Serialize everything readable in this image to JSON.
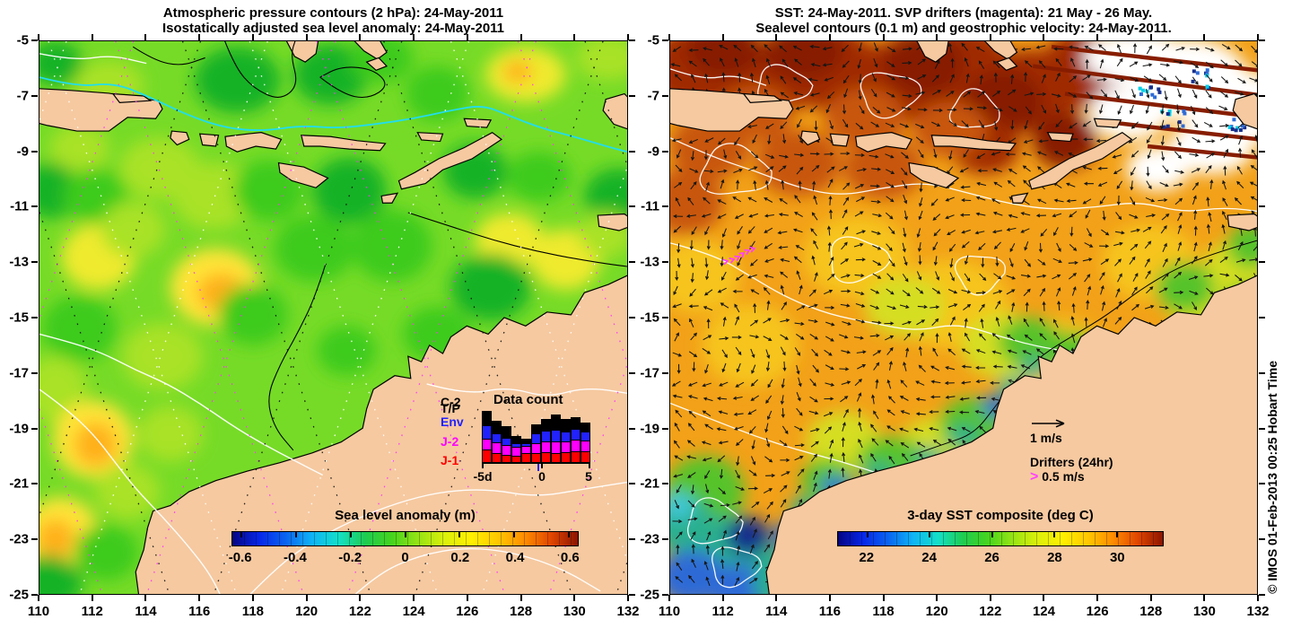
{
  "watermark": "© IMOS 01-Feb-2013 00:25 Hobart Time",
  "axes": {
    "x_tick_labels": [
      "110",
      "112",
      "114",
      "116",
      "118",
      "120",
      "122",
      "124",
      "126",
      "128",
      "130",
      "132"
    ],
    "y_tick_labels": [
      "-5",
      "-7",
      "-9",
      "-11",
      "-13",
      "-15",
      "-17",
      "-19",
      "-21",
      "-23",
      "-25"
    ]
  },
  "colors": {
    "land": "#F6C9A0",
    "drifter_magenta": "#FF3FFF",
    "rainbow_gradient": [
      "#050582",
      "#0726E8",
      "#0A64F0",
      "#0FB4F5",
      "#14E0C8",
      "#1ECC50",
      "#46D41E",
      "#96E414",
      "#DCF00A",
      "#FFF000",
      "#FFC800",
      "#FF8C00",
      "#E04600",
      "#8C1400"
    ]
  },
  "left_panel": {
    "title_line1": "Atmospheric pressure contours (2 hPa): 24-May-2011",
    "title_line2": "Isostatically adjusted sea level anomaly: 24-May-2011",
    "colorbar": {
      "title": "Sea level anomaly (m)",
      "tick_labels": [
        "-0.6",
        "-0.4",
        "-0.2",
        "0",
        "0.2",
        "0.4",
        "0.6"
      ]
    },
    "inset": {
      "title": "Data count",
      "x_tick_labels": [
        "-5d",
        "0",
        "5"
      ],
      "legend": [
        {
          "label": "C-2",
          "color": "#000000"
        },
        {
          "label": "T/P",
          "color": "#000000"
        },
        {
          "label": "Env",
          "color": "#2222FF"
        },
        {
          "label": "J-2",
          "color": "#FF00FF"
        },
        {
          "label": "J-1",
          "color": "#FF0000"
        }
      ]
    }
  },
  "right_panel": {
    "title_line1": "SST: 24-May-2011. SVP drifters (magenta): 21 May - 26 May.",
    "title_line2": "Sealevel contours (0.1 m) and geostrophic velocity: 24-May-2011.",
    "colorbar": {
      "title": "3-day SST composite (deg C)",
      "tick_labels": [
        "22",
        "24",
        "26",
        "28",
        "30"
      ]
    },
    "vector_legend_label": "1 m/s",
    "drifter_legend": {
      "line1": "Drifters (24hr)",
      "symbol": ">",
      "line2": "0.5 m/s"
    }
  },
  "chart_data": [
    {
      "type": "heatmap",
      "panel": "left",
      "title": "Isostatically adjusted sea level anomaly: 24-May-2011",
      "overlay": "Atmospheric pressure contours (2 hPa): 24-May-2011",
      "x_range": [
        110,
        132
      ],
      "y_range": [
        -25,
        -5
      ],
      "x_ticks": [
        110,
        112,
        114,
        116,
        118,
        120,
        122,
        124,
        126,
        128,
        130,
        132
      ],
      "y_ticks": [
        -5,
        -7,
        -9,
        -11,
        -13,
        -15,
        -17,
        -19,
        -21,
        -23,
        -25
      ],
      "colorbar": {
        "label": "Sea level anomaly (m)",
        "ticks": [
          -0.6,
          -0.4,
          -0.2,
          0,
          0.2,
          0.4,
          0.6
        ],
        "range": [
          -0.65,
          0.65
        ]
      }
    },
    {
      "type": "bar",
      "panel": "left-inset",
      "title": "Data count",
      "stacked": true,
      "categories": [
        -5,
        -4,
        -3,
        -2,
        -1,
        0,
        1,
        2,
        3,
        4,
        5
      ],
      "x_tick_labels": [
        "-5d",
        "0",
        "5"
      ],
      "units": "relative count (estimated from pixels)",
      "series": [
        {
          "name": "J-1",
          "color": "#FF0000",
          "values": [
            3.5,
            2.5,
            2.0,
            1.8,
            2.5,
            2.5,
            2.8,
            2.5,
            2.8,
            3.0,
            3.0
          ]
        },
        {
          "name": "J-2",
          "color": "#FF00FF",
          "values": [
            3.0,
            3.0,
            2.8,
            2.5,
            2.0,
            2.8,
            3.0,
            3.2,
            3.0,
            3.2,
            3.0
          ]
        },
        {
          "name": "Env",
          "color": "#2222FF",
          "values": [
            3.5,
            2.5,
            2.2,
            1.2,
            1.0,
            2.7,
            3.0,
            3.3,
            2.8,
            3.0,
            2.5
          ]
        },
        {
          "name": "C-2 & T/P",
          "color": "#000000",
          "values": [
            4.0,
            3.5,
            3.0,
            2.0,
            1.5,
            2.5,
            3.2,
            4.0,
            3.4,
            3.3,
            2.5
          ]
        }
      ]
    },
    {
      "type": "heatmap",
      "panel": "right",
      "title": "SST: 24-May-2011. SVP drifters (magenta): 21 May - 26 May.",
      "overlay": "Sealevel contours (0.1 m) and geostrophic velocity: 24-May-2011.",
      "x_range": [
        110,
        132
      ],
      "y_range": [
        -25,
        -5
      ],
      "x_ticks": [
        110,
        112,
        114,
        116,
        118,
        120,
        122,
        124,
        126,
        128,
        130,
        132
      ],
      "y_ticks": [
        -5,
        -7,
        -9,
        -11,
        -13,
        -15,
        -17,
        -19,
        -21,
        -23,
        -25
      ],
      "colorbar": {
        "label": "3-day SST composite (deg C)",
        "ticks": [
          22,
          24,
          26,
          28,
          30
        ],
        "range": [
          21,
          31.5
        ]
      }
    }
  ]
}
